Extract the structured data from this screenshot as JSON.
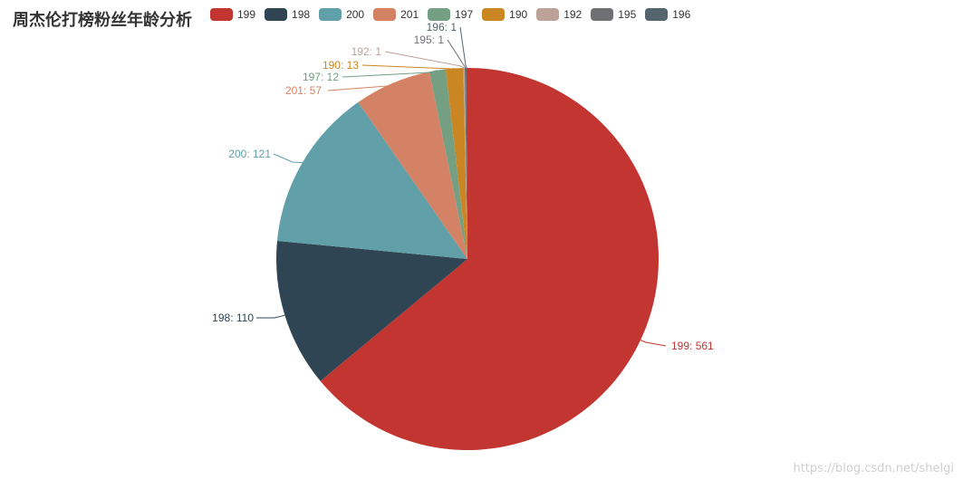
{
  "chart_data": {
    "type": "pie",
    "title": "周杰伦打榜粉丝年龄分析",
    "legend_position": "top",
    "start_angle_deg": 90,
    "clockwise": true,
    "slices": [
      {
        "name": "199",
        "value": 561,
        "color": "#c23531"
      },
      {
        "name": "198",
        "value": 110,
        "color": "#2f4554"
      },
      {
        "name": "200",
        "value": 121,
        "color": "#61a0a8"
      },
      {
        "name": "201",
        "value": 57,
        "color": "#d48265"
      },
      {
        "name": "197",
        "value": 12,
        "color": "#749f83"
      },
      {
        "name": "190",
        "value": 13,
        "color": "#ca8622"
      },
      {
        "name": "192",
        "value": 1,
        "color": "#bda29a"
      },
      {
        "name": "195",
        "value": 1,
        "color": "#6e7074"
      },
      {
        "name": "196",
        "value": 1,
        "color": "#546570"
      }
    ],
    "labels": [
      "199: 561",
      "198: 110",
      "200: 121",
      "201: 57",
      "197: 12",
      "190: 13",
      "192: 1",
      "195: 1",
      "196: 1"
    ]
  },
  "watermark": "https://blog.csdn.net/shelgi"
}
